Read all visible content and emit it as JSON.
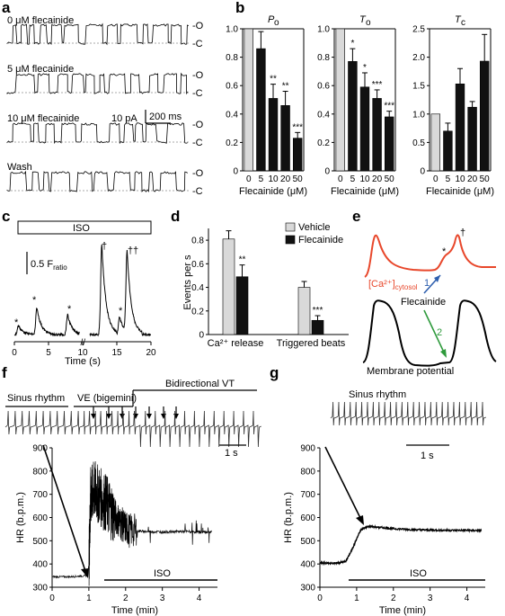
{
  "panels": {
    "a": "a",
    "b": "b",
    "c": "c",
    "d": "d",
    "e": "e",
    "f": "f",
    "g": "g"
  },
  "panel_a": {
    "traces": [
      {
        "label": "0 μM flecainide",
        "open_frac": 0.55
      },
      {
        "label": "5 μM flecainide",
        "open_frac": 0.45
      },
      {
        "label": "10 μM flecainide",
        "open_frac": 0.2
      },
      {
        "label": "Wash",
        "open_frac": 0.5
      }
    ],
    "level_open": "-O",
    "level_closed": "-C",
    "scale_current": "10 pA",
    "scale_time": "200 ms"
  },
  "chart_data": [
    {
      "type": "bar",
      "panel": "b",
      "title": "P",
      "title_sub": "o",
      "categories": [
        "0",
        "5",
        "10",
        "20",
        "50"
      ],
      "values": [
        1.0,
        0.86,
        0.51,
        0.46,
        0.23
      ],
      "errors": [
        0.0,
        0.12,
        0.1,
        0.1,
        0.04
      ],
      "significance": [
        "",
        "",
        "**",
        "**",
        "***"
      ],
      "colors": [
        "#d9d9d9",
        "#111111",
        "#111111",
        "#111111",
        "#111111"
      ],
      "ylim": [
        0,
        1.0
      ],
      "yticks": [
        "0",
        "0.2",
        "0.4",
        "0.6",
        "0.8",
        "1.0"
      ],
      "xlabel": "Flecainide (μM)"
    },
    {
      "type": "bar",
      "panel": "b",
      "title": "T",
      "title_sub": "o",
      "categories": [
        "0",
        "5",
        "10",
        "20",
        "50"
      ],
      "values": [
        1.0,
        0.77,
        0.59,
        0.51,
        0.38
      ],
      "errors": [
        0.0,
        0.09,
        0.1,
        0.06,
        0.04
      ],
      "significance": [
        "",
        "*",
        "*",
        "***",
        "***"
      ],
      "colors": [
        "#d9d9d9",
        "#111111",
        "#111111",
        "#111111",
        "#111111"
      ],
      "ylim": [
        0,
        1.0
      ],
      "yticks": [
        "0",
        "0.2",
        "0.4",
        "0.6",
        "0.8",
        "1.0"
      ],
      "xlabel": "Flecainide (μM)"
    },
    {
      "type": "bar",
      "panel": "b",
      "title": "T",
      "title_sub": "c",
      "categories": [
        "0",
        "5",
        "10",
        "20",
        "50"
      ],
      "values": [
        1.0,
        0.7,
        1.53,
        1.12,
        1.93
      ],
      "errors": [
        0.0,
        0.14,
        0.27,
        0.1,
        0.47
      ],
      "significance": [
        "",
        "",
        "",
        "",
        ""
      ],
      "colors": [
        "#d9d9d9",
        "#111111",
        "#111111",
        "#111111",
        "#111111"
      ],
      "ylim": [
        0,
        2.5
      ],
      "yticks": [
        "0",
        "0.5",
        "1.0",
        "1.5",
        "2.0",
        "2.5"
      ],
      "xlabel": "Flecainide (μM)"
    },
    {
      "type": "bar",
      "panel": "d",
      "categories": [
        "Ca²⁺ release",
        "Triggered beats"
      ],
      "series": [
        {
          "name": "Vehicle",
          "values": [
            0.81,
            0.4
          ],
          "errors": [
            0.07,
            0.05
          ],
          "color": "#d9d9d9"
        },
        {
          "name": "Flecainide",
          "values": [
            0.49,
            0.12
          ],
          "errors": [
            0.1,
            0.04
          ],
          "color": "#111111"
        }
      ],
      "significance": [
        [
          "",
          "**"
        ],
        [
          "",
          "***"
        ]
      ],
      "ylim": [
        0,
        0.9
      ],
      "yticks": [
        "0",
        "0.2",
        "0.4",
        "0.6",
        "0.8"
      ],
      "ylabel": "Events per s",
      "legend": "top-right"
    },
    {
      "type": "line",
      "panel": "f",
      "x": [
        0,
        0.5,
        0.95,
        1.0,
        1.05,
        1.15,
        1.3,
        1.5,
        1.7,
        1.9,
        2.1,
        2.5,
        3.0,
        3.5,
        4.0,
        4.35
      ],
      "y": [
        345,
        345,
        350,
        395,
        690,
        720,
        690,
        655,
        610,
        570,
        545,
        540,
        538,
        540,
        538,
        538
      ],
      "xlim": [
        0,
        4.5
      ],
      "ylim": [
        300,
        900
      ],
      "xticks": [
        "0",
        "1",
        "2",
        "3",
        "4"
      ],
      "yticks": [
        "300",
        "400",
        "500",
        "600",
        "700",
        "800",
        "900"
      ],
      "xlabel": "Time (min)",
      "ylabel": "HR (b.p.m.)"
    },
    {
      "type": "line",
      "panel": "g",
      "x": [
        0,
        0.4,
        0.7,
        0.9,
        1.1,
        1.3,
        1.6,
        2.0,
        2.5,
        3.0,
        3.5,
        4.0,
        4.4
      ],
      "y": [
        405,
        403,
        410,
        470,
        545,
        562,
        558,
        552,
        548,
        546,
        545,
        545,
        544
      ],
      "xlim": [
        0,
        4.5
      ],
      "ylim": [
        300,
        900
      ],
      "xticks": [
        "0",
        "1",
        "2",
        "3",
        "4"
      ],
      "yticks": [
        "300",
        "400",
        "500",
        "600",
        "700",
        "800",
        "900"
      ],
      "xlabel": "Time (min)",
      "ylabel": "HR (b.p.m.)"
    }
  ],
  "panel_b_xlabel": "Flecainide (μM)",
  "panel_c": {
    "bar_label": "ISO",
    "scale_label": "0.5 F",
    "scale_sub": "ratio",
    "xticks": [
      "0",
      "5",
      "10",
      "15",
      "20"
    ],
    "xlabel": "Time (s)",
    "stars": [
      "*",
      "*",
      "*",
      "*"
    ],
    "daggers": [
      "†",
      "†",
      "†"
    ]
  },
  "panel_d_legend": {
    "vehicle": "Vehicle",
    "flecainide": "Flecainide"
  },
  "panel_e": {
    "ca_label": "[Ca²⁺]",
    "ca_sub": "cytosol",
    "drug": "Flecainide",
    "arrow1": "1",
    "arrow2": "2",
    "star": "*",
    "dagger": "†",
    "membrane": "Membrane potential",
    "colors": {
      "calcium": "#e8472b",
      "arrow1": "#2e5fae",
      "arrow2": "#2e9a3c"
    }
  },
  "panel_f": {
    "rhythm1": "Sinus rhythm",
    "rhythm2": "VE (bigemini)",
    "rhythm3": "Bidirectional VT",
    "scale": "1 s",
    "iso": "ISO"
  },
  "panel_g": {
    "rhythm": "Sinus rhythm",
    "scale": "1 s",
    "iso": "ISO"
  }
}
